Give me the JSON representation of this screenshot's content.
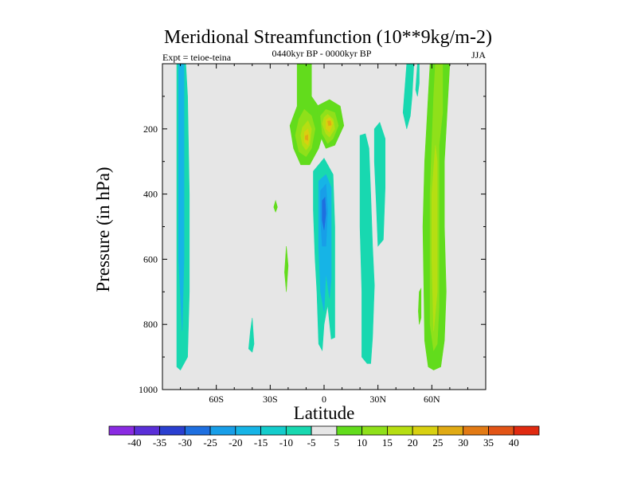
{
  "chart_data": {
    "type": "contour",
    "title": "Meridional Streamfunction (10**9kg/m-2)",
    "subtitle": "0440kyr BP - 0000kyr BP",
    "left_label": "Expt = teioe-teina",
    "right_label": "JJA",
    "xlabel": "Latitude",
    "ylabel": "Pressure (in hPa)",
    "xlim": [
      -90,
      90
    ],
    "ylim": [
      1000,
      0
    ],
    "x_ticks": [
      {
        "value": -60,
        "label": "60S"
      },
      {
        "value": -30,
        "label": "30S"
      },
      {
        "value": 0,
        "label": "0"
      },
      {
        "value": 30,
        "label": "30N"
      },
      {
        "value": 60,
        "label": "60N"
      }
    ],
    "y_ticks": [
      {
        "value": 200,
        "label": "200"
      },
      {
        "value": 400,
        "label": "400"
      },
      {
        "value": 600,
        "label": "600"
      },
      {
        "value": 800,
        "label": "800"
      },
      {
        "value": 1000,
        "label": "1000"
      }
    ],
    "background_color": "#e6e6e6",
    "colorbar": {
      "labels": [
        "-40",
        "-35",
        "-30",
        "-25",
        "-20",
        "-15",
        "-10",
        "-5",
        "5",
        "10",
        "15",
        "20",
        "25",
        "30",
        "35",
        "40"
      ],
      "colors": [
        "#8a2be2",
        "#5a2fd8",
        "#2a3fd0",
        "#1e6fe0",
        "#189ee8",
        "#16b4e6",
        "#14cccc",
        "#18d8b0",
        "#e6e6e6",
        "#62dc1c",
        "#8fe01a",
        "#b6de12",
        "#d8d010",
        "#e0aa14",
        "#e27a14",
        "#e25416",
        "#e02a10"
      ]
    },
    "regions": [
      {
        "value": -10,
        "color": "#18d8b0",
        "points": [
          [
            -82,
            0
          ],
          [
            -77,
            0
          ],
          [
            -76,
            100
          ],
          [
            -75,
            400
          ],
          [
            -75,
            700
          ],
          [
            -76,
            900
          ],
          [
            -80,
            940
          ],
          [
            -82,
            930
          ],
          [
            -82,
            500
          ]
        ]
      },
      {
        "value": -15,
        "color": "#16b4e6",
        "points": [
          [
            -81,
            0
          ],
          [
            -78,
            0
          ],
          [
            -78,
            300
          ],
          [
            -78,
            600
          ],
          [
            -79,
            820
          ],
          [
            -81,
            600
          ],
          [
            -81,
            300
          ]
        ]
      },
      {
        "value": -10,
        "color": "#18d8b0",
        "points": [
          [
            -40,
            780
          ],
          [
            -39,
            860
          ],
          [
            -40,
            885
          ],
          [
            -42,
            875
          ],
          [
            -41,
            820
          ]
        ]
      },
      {
        "value": 5,
        "color": "#62dc1c",
        "points": [
          [
            -27,
            420
          ],
          [
            -26,
            440
          ],
          [
            -27,
            455
          ],
          [
            -28,
            440
          ]
        ]
      },
      {
        "value": 5,
        "color": "#62dc1c",
        "points": [
          [
            -21,
            560
          ],
          [
            -20,
            620
          ],
          [
            -21,
            700
          ],
          [
            -22,
            640
          ]
        ]
      },
      {
        "value": -10,
        "color": "#18d8b0",
        "points": [
          [
            -6,
            330
          ],
          [
            0,
            290
          ],
          [
            5,
            340
          ],
          [
            6,
            500
          ],
          [
            6,
            700
          ],
          [
            6,
            840
          ],
          [
            4,
            845
          ],
          [
            2,
            740
          ],
          [
            0,
            800
          ],
          [
            -1,
            880
          ],
          [
            -3,
            860
          ],
          [
            -4,
            700
          ],
          [
            -5,
            600
          ],
          [
            -6,
            450
          ]
        ]
      },
      {
        "value": -15,
        "color": "#16b4e6",
        "points": [
          [
            -3,
            360
          ],
          [
            1,
            340
          ],
          [
            4,
            380
          ],
          [
            4,
            520
          ],
          [
            4,
            660
          ],
          [
            3,
            720
          ],
          [
            1,
            640
          ],
          [
            0,
            760
          ],
          [
            -2,
            700
          ],
          [
            -3,
            560
          ]
        ]
      },
      {
        "value": -20,
        "color": "#189ee8",
        "points": [
          [
            -2,
            390
          ],
          [
            1,
            370
          ],
          [
            2,
            450
          ],
          [
            1,
            560
          ],
          [
            -1,
            560
          ],
          [
            -2,
            470
          ]
        ]
      },
      {
        "value": -25,
        "color": "#1e6fe0",
        "points": [
          [
            -1,
            420
          ],
          [
            0.5,
            410
          ],
          [
            1,
            460
          ],
          [
            0,
            510
          ],
          [
            -1,
            480
          ]
        ]
      },
      {
        "value": 5,
        "color": "#62dc1c",
        "points": [
          [
            -15,
            0
          ],
          [
            -7,
            0
          ],
          [
            -7,
            100
          ],
          [
            -2,
            140
          ],
          [
            0,
            200
          ],
          [
            -3,
            260
          ],
          [
            -8,
            310
          ],
          [
            -13,
            310
          ],
          [
            -17,
            260
          ],
          [
            -19,
            190
          ],
          [
            -15,
            130
          ]
        ]
      },
      {
        "value": 5,
        "color": "#62dc1c",
        "points": [
          [
            -4,
            130
          ],
          [
            3,
            110
          ],
          [
            9,
            130
          ],
          [
            11,
            190
          ],
          [
            6,
            250
          ],
          [
            1,
            260
          ],
          [
            -3,
            210
          ]
        ]
      },
      {
        "value": 10,
        "color": "#8fe01a",
        "points": [
          [
            -14,
            170
          ],
          [
            -11,
            140
          ],
          [
            -7,
            160
          ],
          [
            -5,
            200
          ],
          [
            -7,
            260
          ],
          [
            -10,
            285
          ],
          [
            -14,
            270
          ],
          [
            -16,
            220
          ]
        ]
      },
      {
        "value": 15,
        "color": "#b6de12",
        "points": [
          [
            -12,
            195
          ],
          [
            -9,
            175
          ],
          [
            -7,
            200
          ],
          [
            -8,
            250
          ],
          [
            -10,
            265
          ],
          [
            -12,
            250
          ],
          [
            -13,
            220
          ]
        ]
      },
      {
        "value": 20,
        "color": "#d8d010",
        "points": [
          [
            -11,
            210
          ],
          [
            -9,
            200
          ],
          [
            -8,
            225
          ],
          [
            -9,
            250
          ],
          [
            -11,
            240
          ]
        ]
      },
      {
        "value": 25,
        "color": "#e0aa14",
        "points": [
          [
            -10.5,
            222
          ],
          [
            -9,
            218
          ],
          [
            -9,
            235
          ],
          [
            -10.5,
            232
          ]
        ]
      },
      {
        "value": 10,
        "color": "#8fe01a",
        "points": [
          [
            -2,
            160
          ],
          [
            1,
            140
          ],
          [
            6,
            150
          ],
          [
            8,
            190
          ],
          [
            5,
            230
          ],
          [
            2,
            245
          ],
          [
            -1,
            215
          ]
        ]
      },
      {
        "value": 15,
        "color": "#b6de12",
        "points": [
          [
            0,
            165
          ],
          [
            2,
            155
          ],
          [
            5,
            170
          ],
          [
            6,
            200
          ],
          [
            3,
            225
          ],
          [
            1,
            215
          ],
          [
            -1,
            185
          ]
        ]
      },
      {
        "value": 20,
        "color": "#d8d010",
        "points": [
          [
            1,
            172
          ],
          [
            3,
            165
          ],
          [
            5,
            182
          ],
          [
            3,
            210
          ],
          [
            1,
            200
          ]
        ]
      },
      {
        "value": 25,
        "color": "#e0aa14",
        "points": [
          [
            2,
            176
          ],
          [
            3.5,
            175
          ],
          [
            4,
            188
          ],
          [
            2.5,
            190
          ]
        ]
      },
      {
        "value": -10,
        "color": "#18d8b0",
        "points": [
          [
            20,
            220
          ],
          [
            23,
            215
          ],
          [
            25,
            260
          ],
          [
            26,
            400
          ],
          [
            27,
            560
          ],
          [
            28,
            680
          ],
          [
            27,
            840
          ],
          [
            26,
            920
          ],
          [
            24,
            920
          ],
          [
            21,
            900
          ],
          [
            21,
            700
          ],
          [
            20,
            500
          ],
          [
            20,
            320
          ]
        ]
      },
      {
        "value": -10,
        "color": "#18d8b0",
        "points": [
          [
            28,
            200
          ],
          [
            31,
            180
          ],
          [
            34,
            230
          ],
          [
            34,
            380
          ],
          [
            33,
            540
          ],
          [
            30,
            560
          ],
          [
            29,
            420
          ],
          [
            28,
            300
          ]
        ]
      },
      {
        "value": -10,
        "color": "#18d8b0",
        "points": [
          [
            46,
            0
          ],
          [
            50,
            0
          ],
          [
            49,
            100
          ],
          [
            48,
            160
          ],
          [
            46,
            200
          ],
          [
            44,
            150
          ]
        ]
      },
      {
        "value": -10,
        "color": "#18d8b0",
        "points": [
          [
            52,
            0
          ],
          [
            53,
            0
          ],
          [
            53,
            60
          ],
          [
            52,
            100
          ],
          [
            51,
            80
          ]
        ]
      },
      {
        "value": 5,
        "color": "#62dc1c",
        "points": [
          [
            59,
            0
          ],
          [
            70,
            0
          ],
          [
            69,
            100
          ],
          [
            68,
            200
          ],
          [
            67,
            300
          ],
          [
            67,
            500
          ],
          [
            68,
            700
          ],
          [
            67,
            850
          ],
          [
            65,
            930
          ],
          [
            61,
            940
          ],
          [
            58,
            930
          ],
          [
            56,
            850
          ],
          [
            55,
            500
          ],
          [
            56,
            300
          ],
          [
            57,
            200
          ],
          [
            58,
            100
          ]
        ]
      },
      {
        "value": 5,
        "color": "#62dc1c",
        "points": [
          [
            53,
            700
          ],
          [
            54,
            690
          ],
          [
            54,
            780
          ],
          [
            53,
            800
          ],
          [
            52.5,
            760
          ]
        ]
      },
      {
        "value": 10,
        "color": "#8fe01a",
        "points": [
          [
            62,
            0
          ],
          [
            66,
            0
          ],
          [
            66,
            150
          ],
          [
            64,
            250
          ],
          [
            64,
            500
          ],
          [
            64,
            750
          ],
          [
            63,
            860
          ],
          [
            61,
            880
          ],
          [
            59,
            800
          ],
          [
            59,
            400
          ],
          [
            60,
            250
          ],
          [
            61,
            100
          ]
        ]
      },
      {
        "value": 15,
        "color": "#b6de12",
        "points": [
          [
            62,
            250
          ],
          [
            63,
            300
          ],
          [
            63,
            500
          ],
          [
            63,
            700
          ],
          [
            61,
            820
          ],
          [
            60,
            600
          ],
          [
            60,
            400
          ]
        ]
      },
      {
        "value": 10,
        "color": "#8fe01a",
        "points": [
          [
            62,
            0
          ],
          [
            63,
            0
          ],
          [
            62.5,
            25
          ]
        ]
      }
    ]
  }
}
